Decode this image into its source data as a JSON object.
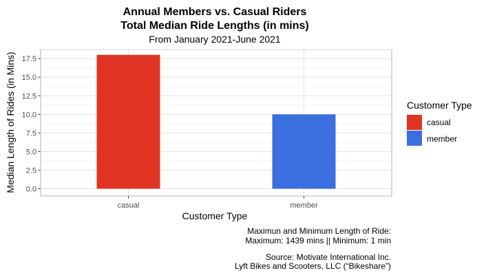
{
  "chart_data": {
    "type": "bar",
    "title_lines": [
      "Annual Members vs. Casual Riders",
      "Total Median Ride Lengths (in mins)"
    ],
    "subtitle": "From January 2021-June 2021",
    "xlabel": "Customer Type",
    "ylabel": "Median Length of Rides (in Mins)",
    "categories": [
      "casual",
      "member"
    ],
    "values": [
      18,
      10
    ],
    "colors": [
      "#E03524",
      "#3A6FDF"
    ],
    "ylim": [
      0,
      18.9
    ],
    "yticks": [
      0.0,
      2.5,
      5.0,
      7.5,
      10.0,
      12.5,
      15.0,
      17.5
    ],
    "ytick_labels": [
      "0.0",
      "2.5",
      "5.0",
      "7.5",
      "10.0",
      "12.5",
      "15.0",
      "17.5"
    ],
    "grid": true,
    "legend": {
      "title": "Customer Type",
      "placement": "right",
      "entries": [
        {
          "label": "casual",
          "color": "#E03524"
        },
        {
          "label": "member",
          "color": "#3A6FDF"
        }
      ]
    },
    "caption_lines": [
      "Maximun and Minimum Length of Ride:",
      "Maximum: 1439 mins || Minimum: 1 min",
      "",
      "Source: Motivate International Inc.",
      "Lyft Bikes and Scooters, LLC (“Bikeshare”)"
    ]
  }
}
